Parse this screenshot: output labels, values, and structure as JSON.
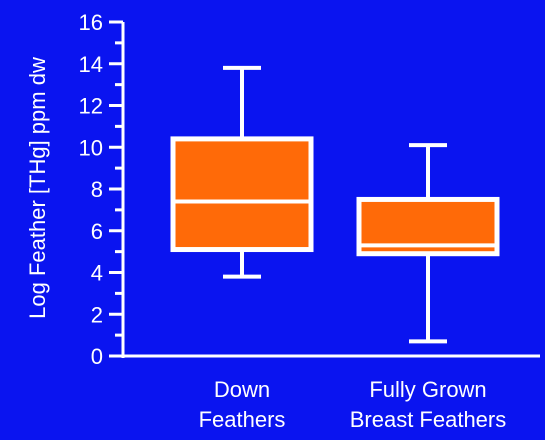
{
  "chart_data": {
    "type": "box",
    "ylabel": "Log Feather [THg] ppm dw",
    "ylim": [
      0,
      16
    ],
    "yticks": [
      0,
      2,
      4,
      6,
      8,
      10,
      12,
      14,
      16
    ],
    "categories": [
      {
        "lines": [
          "Down",
          "Feathers"
        ]
      },
      {
        "lines": [
          "Fully Grown",
          "Breast Feathers"
        ]
      }
    ],
    "boxes": [
      {
        "min": 3.8,
        "q1": 5.1,
        "median": 7.4,
        "q3": 10.4,
        "max": 13.8
      },
      {
        "min": 0.7,
        "q1": 4.9,
        "median": 5.3,
        "q3": 7.5,
        "max": 10.1
      }
    ],
    "colors": {
      "background": "#0a14f0",
      "box_fill": "#ff6a08",
      "lines": "#ffffff"
    }
  }
}
